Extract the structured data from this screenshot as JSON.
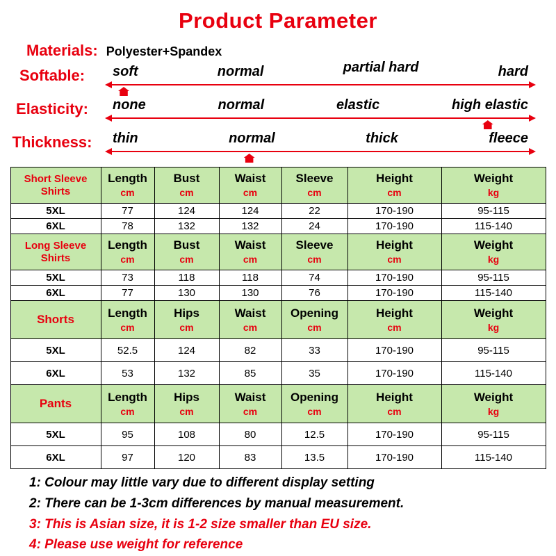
{
  "title": "Product Parameter",
  "materials": {
    "label": "Materials:",
    "value": "Polyester+Spandex"
  },
  "scales": [
    {
      "label": "Softable:",
      "options": [
        "soft",
        "normal",
        "partial hard",
        "hard"
      ],
      "marker_index": 0
    },
    {
      "label": "Elasticity:",
      "options": [
        "none",
        "normal",
        "elastic",
        "high elastic"
      ],
      "marker_index": 3
    },
    {
      "label": "Thickness:",
      "options": [
        "thin",
        "normal",
        "thick",
        "fleece"
      ],
      "marker_index": 1
    }
  ],
  "table": {
    "sections": [
      {
        "name": "Short Sleeve Shirts",
        "columns": [
          "Length",
          "Bust",
          "Waist",
          "Sleeve",
          "Height",
          "Weight"
        ],
        "units": [
          "cm",
          "cm",
          "cm",
          "cm",
          "cm",
          "kg"
        ],
        "rows": [
          {
            "size": "5XL",
            "values": [
              "77",
              "124",
              "124",
              "22",
              "170-190",
              "95-115"
            ]
          },
          {
            "size": "6XL",
            "values": [
              "78",
              "132",
              "132",
              "24",
              "170-190",
              "115-140"
            ]
          }
        ]
      },
      {
        "name": "Long Sleeve Shirts",
        "columns": [
          "Length",
          "Bust",
          "Waist",
          "Sleeve",
          "Height",
          "Weight"
        ],
        "units": [
          "cm",
          "cm",
          "cm",
          "cm",
          "cm",
          "kg"
        ],
        "rows": [
          {
            "size": "5XL",
            "values": [
              "73",
              "118",
              "118",
              "74",
              "170-190",
              "95-115"
            ]
          },
          {
            "size": "6XL",
            "values": [
              "77",
              "130",
              "130",
              "76",
              "170-190",
              "115-140"
            ]
          }
        ]
      },
      {
        "name": "Shorts",
        "columns": [
          "Length",
          "Hips",
          "Waist",
          "Opening",
          "Height",
          "Weight"
        ],
        "units": [
          "cm",
          "cm",
          "cm",
          "cm",
          "cm",
          "kg"
        ],
        "rows": [
          {
            "size": "5XL",
            "values": [
              "52.5",
              "124",
              "82",
              "33",
              "170-190",
              "95-115"
            ]
          },
          {
            "size": "6XL",
            "values": [
              "53",
              "132",
              "85",
              "35",
              "170-190",
              "115-140"
            ]
          }
        ]
      },
      {
        "name": "Pants",
        "columns": [
          "Length",
          "Hips",
          "Waist",
          "Opening",
          "Height",
          "Weight"
        ],
        "units": [
          "cm",
          "cm",
          "cm",
          "cm",
          "cm",
          "kg"
        ],
        "rows": [
          {
            "size": "5XL",
            "values": [
              "95",
              "108",
              "80",
              "12.5",
              "170-190",
              "95-115"
            ]
          },
          {
            "size": "6XL",
            "values": [
              "97",
              "120",
              "83",
              "13.5",
              "170-190",
              "115-140"
            ]
          }
        ]
      }
    ]
  },
  "notes": [
    "1: Colour may little vary due to different display setting",
    "2: There can be 1-3cm differences by manual measurement.",
    "3: This is Asian size, it is 1-2 size smaller than EU size.",
    "4: Please use weight for reference"
  ],
  "colors": {
    "accent_red": "#e8000f",
    "header_green": "#c6e8ac"
  }
}
